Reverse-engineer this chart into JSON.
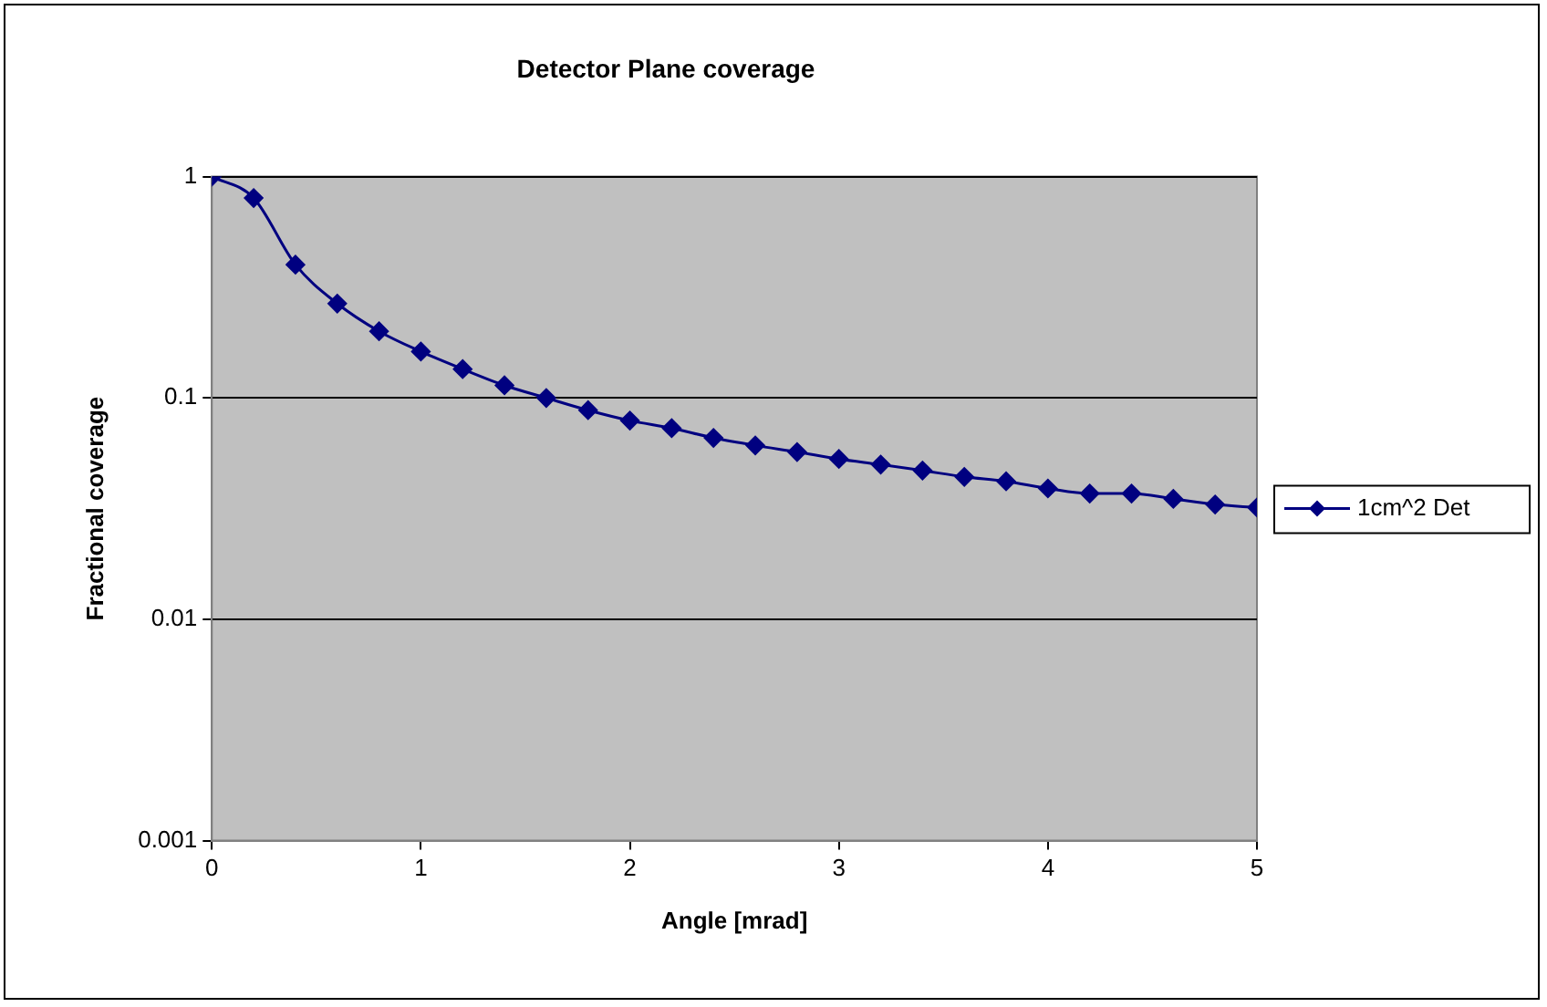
{
  "chart_data": {
    "type": "line",
    "title": "Detector Plane coverage",
    "xlabel": "Angle [mrad]",
    "ylabel": "Fractional coverage",
    "x": [
      0,
      0.2,
      0.4,
      0.6,
      0.8,
      1,
      1.2,
      1.4,
      1.6,
      1.8,
      2,
      2.2,
      2.4,
      2.6,
      2.8,
      3,
      3.2,
      3.4,
      3.6,
      3.8,
      4,
      4.2,
      4.4,
      4.6,
      4.8,
      5
    ],
    "series": [
      {
        "name": "1cm^2 Det",
        "color": "#000080",
        "values": [
          1,
          0.8,
          0.4,
          0.267,
          0.2,
          0.162,
          0.135,
          0.114,
          0.1,
          0.088,
          0.079,
          0.073,
          0.066,
          0.061,
          0.057,
          0.053,
          0.05,
          0.047,
          0.044,
          0.042,
          0.039,
          0.037,
          0.037,
          0.035,
          0.033,
          0.032
        ]
      }
    ],
    "xlim": [
      0,
      5
    ],
    "xticks": [
      0,
      1,
      2,
      3,
      4,
      5
    ],
    "ylim": [
      0.001,
      1
    ],
    "yticks": [
      0.001,
      0.01,
      0.1,
      1
    ],
    "log": "y",
    "grid": "y",
    "legend": "right",
    "marker": "diamond",
    "line_style": "solid"
  }
}
